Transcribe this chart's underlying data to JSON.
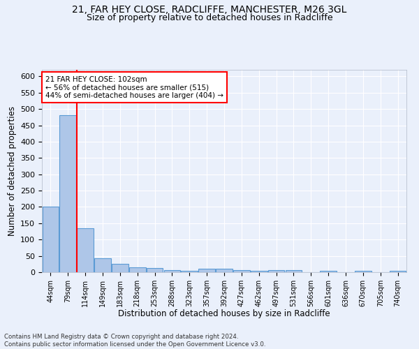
{
  "title_line1": "21, FAR HEY CLOSE, RADCLIFFE, MANCHESTER, M26 3GL",
  "title_line2": "Size of property relative to detached houses in Radcliffe",
  "xlabel": "Distribution of detached houses by size in Radcliffe",
  "ylabel": "Number of detached properties",
  "footnote": "Contains HM Land Registry data © Crown copyright and database right 2024.\nContains public sector information licensed under the Open Government Licence v3.0.",
  "bar_labels": [
    "44sqm",
    "79sqm",
    "114sqm",
    "149sqm",
    "183sqm",
    "218sqm",
    "253sqm",
    "288sqm",
    "323sqm",
    "357sqm",
    "392sqm",
    "427sqm",
    "462sqm",
    "497sqm",
    "531sqm",
    "566sqm",
    "601sqm",
    "636sqm",
    "670sqm",
    "705sqm",
    "740sqm"
  ],
  "bar_values": [
    200,
    480,
    135,
    43,
    25,
    15,
    12,
    6,
    5,
    10,
    11,
    6,
    5,
    6,
    7,
    1,
    5,
    1,
    5,
    1,
    5
  ],
  "bar_color": "#aec6e8",
  "bar_edge_color": "#5b9bd5",
  "annotation_text": "21 FAR HEY CLOSE: 102sqm\n← 56% of detached houses are smaller (515)\n44% of semi-detached houses are larger (404) →",
  "annotation_box_color": "white",
  "annotation_box_edge_color": "red",
  "highlight_line_color": "red",
  "ylim": [
    0,
    620
  ],
  "yticks": [
    0,
    50,
    100,
    150,
    200,
    250,
    300,
    350,
    400,
    450,
    500,
    550,
    600
  ],
  "bg_color": "#eaf0fb",
  "grid_color": "white",
  "title1_fontsize": 10,
  "title2_fontsize": 9
}
